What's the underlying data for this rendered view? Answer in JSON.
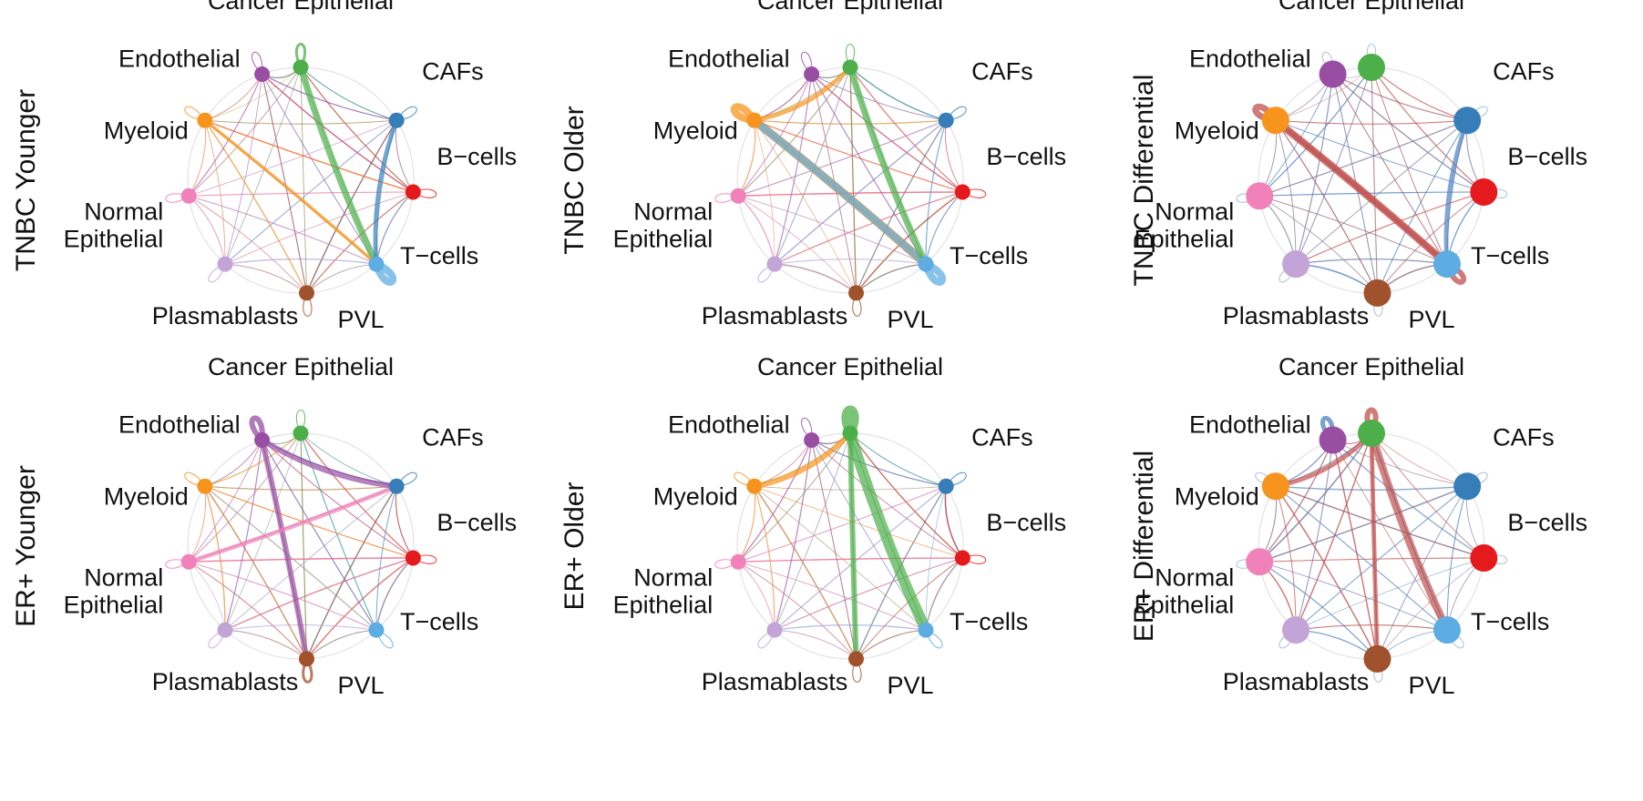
{
  "figure": {
    "cell_types": [
      "Cancer Epithelial",
      "CAFs",
      "B−cells",
      "T−cells",
      "PVL",
      "Plasmablasts",
      "Normal Epithelial",
      "Myeloid",
      "Endothelial"
    ],
    "colors": {
      "Cancer Epithelial": "#4daf4a",
      "CAFs": "#377eb8",
      "B−cells": "#e41a1c",
      "T−cells": "#5dade2",
      "PVL": "#a0522d",
      "Plasmablasts": "#c3a4d6",
      "Normal Epithelial": "#f081b9",
      "Myeloid": "#f7941d",
      "Endothelial": "#984ea3"
    },
    "differential_colors": {
      "increased": "#c0504d",
      "decreased": "#4f81bd"
    },
    "panels": [
      {
        "title": "TNBC Younger",
        "labels": [
          "Cancer Epithelial",
          "CAFs",
          "B−cells",
          "T−cells",
          "PVL",
          "Plasmablasts",
          "Normal\nEpithelial",
          "Myeloid",
          "Endothelial"
        ],
        "strong_edges": [
          {
            "from": "Cancer Epithelial",
            "to": "T−cells",
            "weight": 3
          },
          {
            "from": "CAFs",
            "to": "T−cells",
            "weight": 2
          },
          {
            "from": "Myeloid",
            "to": "T−cells",
            "weight": 1.5
          }
        ],
        "self_loops": [
          {
            "node": "T−cells",
            "weight": 4
          },
          {
            "node": "Cancer Epithelial",
            "weight": 1.5
          }
        ]
      },
      {
        "title": "TNBC Older",
        "labels": [
          "Cancer Epithelial",
          "CAFs",
          "B−cells",
          "T−cells",
          "PVL",
          "Plasmablasts",
          "Normal\nEpithelial",
          "Myeloid",
          "Endothelial"
        ],
        "strong_edges": [
          {
            "from": "Myeloid",
            "to": "T−cells",
            "weight": 4
          },
          {
            "from": "T−cells",
            "to": "Myeloid",
            "weight": 3.5
          },
          {
            "from": "Cancer Epithelial",
            "to": "T−cells",
            "weight": 3
          },
          {
            "from": "Myeloid",
            "to": "Cancer Epithelial",
            "weight": 2
          }
        ],
        "self_loops": [
          {
            "node": "Myeloid",
            "weight": 4
          },
          {
            "node": "T−cells",
            "weight": 4
          }
        ]
      },
      {
        "title": "TNBC Differential",
        "differential": true,
        "labels": [
          "Cancer Epithelial",
          "CAFs",
          "B−cells",
          "T−cells",
          "PVL",
          "Plasmablasts",
          "Normal\nEpithelial",
          "Myeloid",
          "Endothelial"
        ],
        "strong_edges": [
          {
            "from": "Myeloid",
            "to": "T−cells",
            "weight": 3.5,
            "sign": "increased"
          },
          {
            "from": "T−cells",
            "to": "Myeloid",
            "weight": 2.5,
            "sign": "increased"
          },
          {
            "from": "CAFs",
            "to": "T−cells",
            "weight": 2,
            "sign": "decreased"
          }
        ],
        "self_loops": [
          {
            "node": "Myeloid",
            "weight": 3.5,
            "sign": "increased"
          },
          {
            "node": "T−cells",
            "weight": 3,
            "sign": "increased"
          }
        ]
      },
      {
        "title": "ER+ Younger",
        "labels": [
          "Cancer Epithelial",
          "CAFs",
          "B−cells",
          "T−cells",
          "PVL",
          "Plasmablasts",
          "Normal\nEpithelial",
          "Myeloid",
          "Endothelial"
        ],
        "strong_edges": [
          {
            "from": "Endothelial",
            "to": "PVL",
            "weight": 2.5
          },
          {
            "from": "Endothelial",
            "to": "CAFs",
            "weight": 2.5
          },
          {
            "from": "Normal Epithelial",
            "to": "CAFs",
            "weight": 2
          }
        ],
        "self_loops": [
          {
            "node": "Endothelial",
            "weight": 3
          },
          {
            "node": "PVL",
            "weight": 1.5
          }
        ]
      },
      {
        "title": "ER+ Older",
        "labels": [
          "Cancer Epithelial",
          "CAFs",
          "B−cells",
          "T−cells",
          "PVL",
          "Plasmablasts",
          "Normal\nEpithelial",
          "Myeloid",
          "Endothelial"
        ],
        "strong_edges": [
          {
            "from": "Cancer Epithelial",
            "to": "T−cells",
            "weight": 5
          },
          {
            "from": "Cancer Epithelial",
            "to": "PVL",
            "weight": 2.5
          },
          {
            "from": "Myeloid",
            "to": "Cancer Epithelial",
            "weight": 2.5
          }
        ],
        "self_loops": [
          {
            "node": "Cancer Epithelial",
            "weight": 5
          }
        ]
      },
      {
        "title": "ER+ Differential",
        "differential": true,
        "labels": [
          "Cancer Epithelial",
          "CAFs",
          "B−cells",
          "T−cells",
          "PVL",
          "Plasmablasts",
          "Normal\nEpithelial",
          "Myeloid",
          "Endothelial"
        ],
        "strong_edges": [
          {
            "from": "Cancer Epithelial",
            "to": "T−cells",
            "weight": 3.5,
            "sign": "increased"
          },
          {
            "from": "Cancer Epithelial",
            "to": "PVL",
            "weight": 2,
            "sign": "increased"
          },
          {
            "from": "Myeloid",
            "to": "Cancer Epithelial",
            "weight": 2,
            "sign": "increased"
          }
        ],
        "self_loops": [
          {
            "node": "Cancer Epithelial",
            "weight": 3,
            "sign": "increased"
          },
          {
            "node": "Endothelial",
            "weight": 2.5,
            "sign": "decreased"
          }
        ]
      }
    ]
  }
}
